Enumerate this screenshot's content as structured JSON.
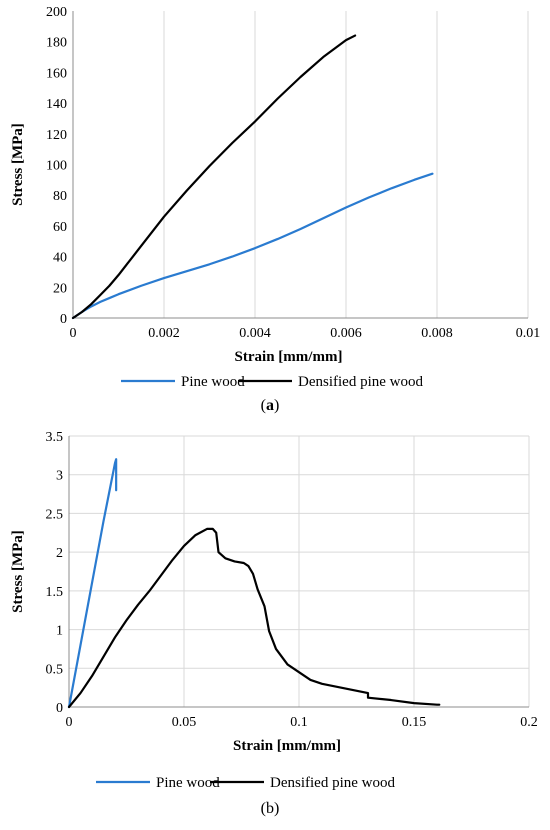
{
  "chart_data": [
    {
      "type": "line",
      "panel_label": "(a)",
      "panel_label_bold_part": "a",
      "xlabel": "Strain [mm/mm]",
      "ylabel": "Stress [MPa]",
      "xlim": [
        0,
        0.01
      ],
      "ylim": [
        0,
        200
      ],
      "xticks": [
        "0",
        "0.002",
        "0.004",
        "0.006",
        "0.008",
        "0.01"
      ],
      "xtick_values": [
        0,
        0.002,
        0.004,
        0.006,
        0.008,
        0.01
      ],
      "yticks": [
        "0",
        "20",
        "40",
        "60",
        "80",
        "100",
        "120",
        "140",
        "160",
        "180",
        "200"
      ],
      "ytick_values": [
        0,
        20,
        40,
        60,
        80,
        100,
        120,
        140,
        160,
        180,
        200
      ],
      "grid": "vertical",
      "legend_position": "bottom",
      "series": [
        {
          "name": "Pine wood",
          "color": "#2a7bd0",
          "x": [
            0,
            0.0002,
            0.0004,
            0.0006,
            0.0008,
            0.001,
            0.0015,
            0.002,
            0.0025,
            0.003,
            0.0035,
            0.004,
            0.0045,
            0.005,
            0.0055,
            0.006,
            0.0065,
            0.007,
            0.0075,
            0.0079
          ],
          "y": [
            0,
            4,
            7.5,
            10.5,
            13,
            15.5,
            21,
            26,
            30.5,
            35,
            40,
            45.5,
            51.5,
            58,
            65,
            72,
            78.5,
            84.5,
            90,
            94
          ]
        },
        {
          "name": "Densified pine wood",
          "color": "#000000",
          "x": [
            0,
            0.0002,
            0.0004,
            0.0006,
            0.0008,
            0.001,
            0.0015,
            0.002,
            0.0025,
            0.003,
            0.0035,
            0.004,
            0.0045,
            0.005,
            0.0055,
            0.006,
            0.0062
          ],
          "y": [
            0,
            4,
            9,
            15,
            21,
            28,
            47,
            66,
            83,
            99,
            114,
            128,
            143,
            157,
            170,
            181,
            184
          ]
        }
      ]
    },
    {
      "type": "line",
      "panel_label": "(b)",
      "xlabel": "Strain [mm/mm]",
      "ylabel": "Stress [MPa]",
      "xlim": [
        0,
        0.2
      ],
      "ylim": [
        0,
        3.5
      ],
      "xticks": [
        "0",
        "0.05",
        "0.1",
        "0.15",
        "0.2"
      ],
      "xtick_values": [
        0,
        0.05,
        0.1,
        0.15,
        0.2
      ],
      "yticks": [
        "0",
        "0.5",
        "1",
        "1.5",
        "2",
        "2.5",
        "3",
        "3.5"
      ],
      "ytick_values": [
        0,
        0.5,
        1,
        1.5,
        2,
        2.5,
        3,
        3.5
      ],
      "grid": "both",
      "legend_position": "bottom",
      "series": [
        {
          "name": "Pine wood",
          "color": "#2a7bd0",
          "x": [
            0,
            0.005,
            0.01,
            0.015,
            0.02,
            0.0205,
            0.0205
          ],
          "y": [
            0,
            0.8,
            1.6,
            2.4,
            3.15,
            3.2,
            2.8
          ]
        },
        {
          "name": "Densified pine wood",
          "color": "#000000",
          "x": [
            0,
            0.005,
            0.01,
            0.015,
            0.02,
            0.025,
            0.03,
            0.035,
            0.04,
            0.045,
            0.05,
            0.055,
            0.06,
            0.0625,
            0.064,
            0.065,
            0.068,
            0.072,
            0.076,
            0.078,
            0.08,
            0.082,
            0.085,
            0.087,
            0.09,
            0.095,
            0.1,
            0.105,
            0.11,
            0.12,
            0.13,
            0.13,
            0.14,
            0.15,
            0.16,
            0.161
          ],
          "y": [
            0,
            0.18,
            0.4,
            0.65,
            0.9,
            1.12,
            1.32,
            1.5,
            1.7,
            1.9,
            2.08,
            2.22,
            2.3,
            2.3,
            2.25,
            2.0,
            1.92,
            1.88,
            1.86,
            1.82,
            1.72,
            1.52,
            1.3,
            0.98,
            0.75,
            0.55,
            0.45,
            0.35,
            0.3,
            0.24,
            0.18,
            0.12,
            0.09,
            0.05,
            0.03,
            0.03
          ]
        }
      ]
    }
  ]
}
